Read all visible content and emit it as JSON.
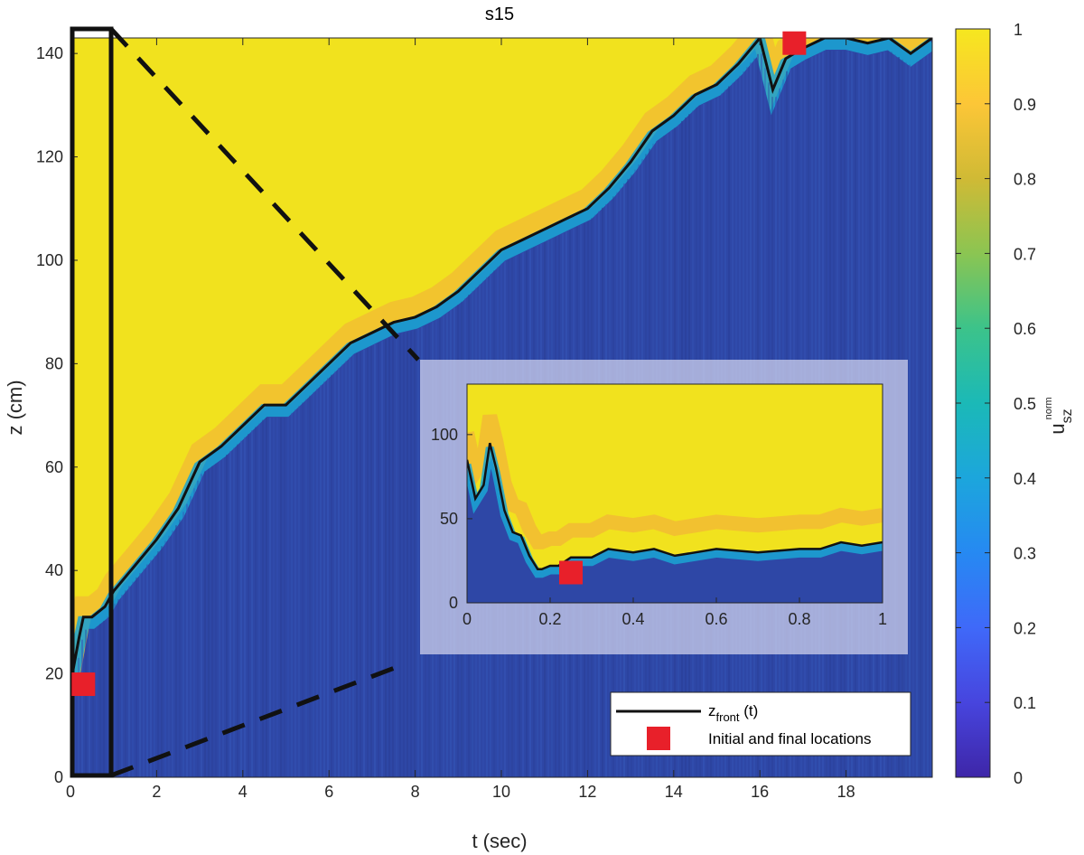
{
  "chart_data": {
    "type": "heatmap",
    "title": "s15",
    "xlabel": "t (sec)",
    "ylabel": "z (cm)",
    "xlim": [
      0,
      20
    ],
    "ylim": [
      0,
      143
    ],
    "x_ticks": [
      "0",
      "2",
      "4",
      "6",
      "8",
      "10",
      "12",
      "14",
      "16",
      "18"
    ],
    "y_ticks": [
      "0",
      "20",
      "40",
      "60",
      "80",
      "100",
      "120",
      "140"
    ],
    "colorbar": {
      "label_main": "u",
      "label_sub": "sz",
      "label_sup": "norm",
      "ticks": [
        "0",
        "0.1",
        "0.2",
        "0.3",
        "0.4",
        "0.5",
        "0.6",
        "0.7",
        "0.8",
        "0.9",
        "1"
      ],
      "range": [
        0,
        1
      ],
      "colormap": "parula"
    },
    "front_series": {
      "name": "z_front (t)",
      "t": [
        0,
        0.2,
        0.3,
        0.5,
        0.8,
        1,
        1.5,
        2,
        2.5,
        3,
        3.5,
        4,
        4.5,
        5,
        5.5,
        6,
        6.5,
        7,
        7.5,
        8,
        8.5,
        9,
        9.5,
        10,
        10.5,
        11,
        11.5,
        12,
        12.5,
        13,
        13.5,
        14,
        14.5,
        15,
        15.5,
        16,
        16.3,
        16.6,
        17,
        17.5,
        18,
        18.5,
        19,
        19.5,
        20
      ],
      "z": [
        18,
        27,
        31,
        31,
        33,
        36,
        41,
        46,
        52,
        61,
        64,
        68,
        72,
        72,
        76,
        80,
        84,
        86,
        88,
        89,
        91,
        94,
        98,
        102,
        104,
        106,
        108,
        110,
        114,
        119,
        125,
        128,
        132,
        134,
        138,
        143,
        133,
        139,
        141,
        143,
        143,
        142,
        143,
        140,
        143
      ]
    },
    "markers": [
      {
        "t": 0.3,
        "z": 18
      },
      {
        "t": 16.8,
        "z": 142
      }
    ],
    "inset": {
      "xlim": [
        0,
        1
      ],
      "ylim": [
        0,
        130
      ],
      "x_ticks": [
        "0",
        "0.2",
        "0.4",
        "0.6",
        "0.8",
        "1"
      ],
      "y_ticks": [
        "0",
        "50",
        "100"
      ],
      "front_t": [
        0,
        0.02,
        0.04,
        0.055,
        0.07,
        0.09,
        0.11,
        0.13,
        0.15,
        0.17,
        0.18,
        0.2,
        0.22,
        0.25,
        0.3,
        0.34,
        0.4,
        0.45,
        0.5,
        0.55,
        0.6,
        0.7,
        0.8,
        0.85,
        0.9,
        0.95,
        1
      ],
      "front_z": [
        85,
        62,
        70,
        95,
        80,
        55,
        42,
        40,
        28,
        20,
        20,
        22,
        22,
        27,
        27,
        32,
        30,
        32,
        28,
        30,
        32,
        30,
        32,
        32,
        36,
        34,
        36
      ],
      "marker": {
        "t": 0.25,
        "z": 18
      }
    },
    "legend": {
      "line_label": "z",
      "line_sub": "front",
      "line_suffix": " (t)",
      "marker_label": "Initial and final locations",
      "position": "bottom-right"
    },
    "colors": {
      "high": "#f1e21e",
      "mid": "#14b5c5",
      "low": "#2e47a6",
      "front_line": "#111111",
      "marker": "#e8202a",
      "inset_overlay": "#c9cbe8"
    }
  }
}
